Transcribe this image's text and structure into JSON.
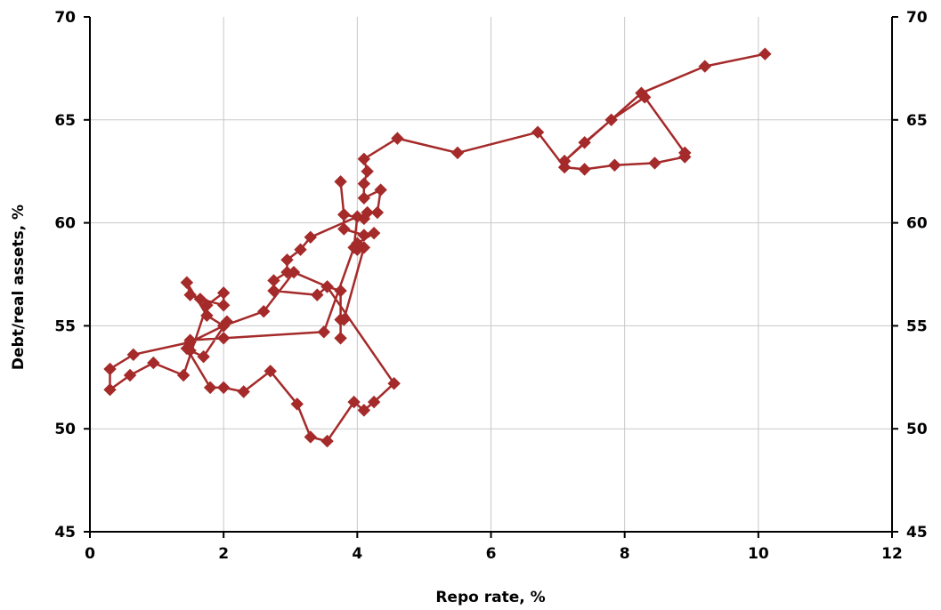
{
  "chart_data": {
    "type": "line",
    "xlabel": "Repo rate, %",
    "ylabel": "Debt/real assets, %",
    "xlim": [
      0,
      12
    ],
    "ylim": [
      45,
      70
    ],
    "x_ticks": [
      0,
      2,
      4,
      6,
      8,
      10,
      12
    ],
    "y_ticks": [
      45,
      50,
      55,
      60,
      65,
      70
    ],
    "grid": true,
    "legend": "none",
    "marker": "diamond",
    "color": "#a52a2a",
    "series": [
      {
        "points": [
          [
            10.1,
            68.2
          ],
          [
            9.2,
            67.6
          ],
          [
            8.25,
            66.3
          ],
          [
            7.1,
            63.0
          ],
          [
            7.4,
            63.9
          ],
          [
            7.8,
            65.0
          ],
          [
            8.3,
            66.1
          ],
          [
            8.9,
            63.4
          ],
          [
            8.9,
            63.2
          ],
          [
            8.45,
            62.9
          ],
          [
            7.85,
            62.8
          ],
          [
            7.4,
            62.6
          ],
          [
            7.1,
            62.7
          ],
          [
            6.7,
            64.4
          ],
          [
            5.5,
            63.4
          ],
          [
            4.6,
            64.1
          ],
          [
            4.1,
            63.1
          ],
          [
            4.15,
            62.5
          ],
          [
            4.1,
            61.9
          ],
          [
            4.1,
            61.2
          ],
          [
            4.35,
            61.6
          ],
          [
            4.3,
            60.5
          ],
          [
            4.15,
            60.5
          ],
          [
            4.1,
            60.2
          ],
          [
            3.8,
            60.4
          ],
          [
            3.75,
            62.0
          ],
          [
            3.8,
            60.4
          ],
          [
            3.8,
            59.7
          ],
          [
            4.1,
            59.4
          ],
          [
            4.25,
            59.5
          ],
          [
            4.0,
            59.0
          ],
          [
            4.0,
            58.7
          ],
          [
            4.1,
            58.8
          ],
          [
            3.8,
            55.3
          ],
          [
            3.75,
            55.3
          ],
          [
            3.75,
            54.4
          ],
          [
            3.75,
            56.7
          ],
          [
            3.55,
            56.9
          ],
          [
            3.4,
            56.5
          ],
          [
            2.75,
            56.7
          ],
          [
            2.75,
            57.2
          ],
          [
            2.95,
            57.6
          ],
          [
            2.95,
            58.2
          ],
          [
            3.15,
            58.7
          ],
          [
            3.3,
            59.3
          ],
          [
            4.0,
            60.3
          ],
          [
            3.95,
            58.8
          ],
          [
            3.5,
            54.7
          ],
          [
            2.0,
            54.4
          ],
          [
            1.5,
            54.3
          ],
          [
            1.5,
            53.8
          ],
          [
            1.7,
            53.5
          ],
          [
            2.05,
            55.2
          ],
          [
            2.0,
            55.0
          ],
          [
            1.5,
            54.2
          ],
          [
            0.65,
            53.6
          ],
          [
            0.3,
            52.9
          ],
          [
            0.3,
            51.9
          ],
          [
            0.6,
            52.6
          ],
          [
            0.95,
            53.2
          ],
          [
            1.4,
            52.6
          ],
          [
            1.75,
            56.0
          ],
          [
            2.0,
            56.6
          ],
          [
            2.0,
            56.0
          ],
          [
            1.65,
            56.3
          ],
          [
            1.5,
            56.5
          ],
          [
            1.45,
            57.1
          ],
          [
            1.75,
            55.5
          ],
          [
            2.0,
            55.0
          ],
          [
            2.6,
            55.7
          ],
          [
            3.05,
            57.6
          ],
          [
            3.55,
            56.9
          ],
          [
            4.55,
            52.2
          ],
          [
            4.25,
            51.3
          ],
          [
            4.1,
            50.9
          ],
          [
            3.95,
            51.3
          ],
          [
            3.55,
            49.4
          ],
          [
            3.3,
            49.6
          ],
          [
            3.1,
            51.2
          ],
          [
            2.7,
            52.8
          ],
          [
            2.3,
            51.8
          ],
          [
            2.0,
            52.0
          ],
          [
            1.8,
            52.0
          ],
          [
            1.45,
            53.9
          ]
        ]
      }
    ]
  }
}
